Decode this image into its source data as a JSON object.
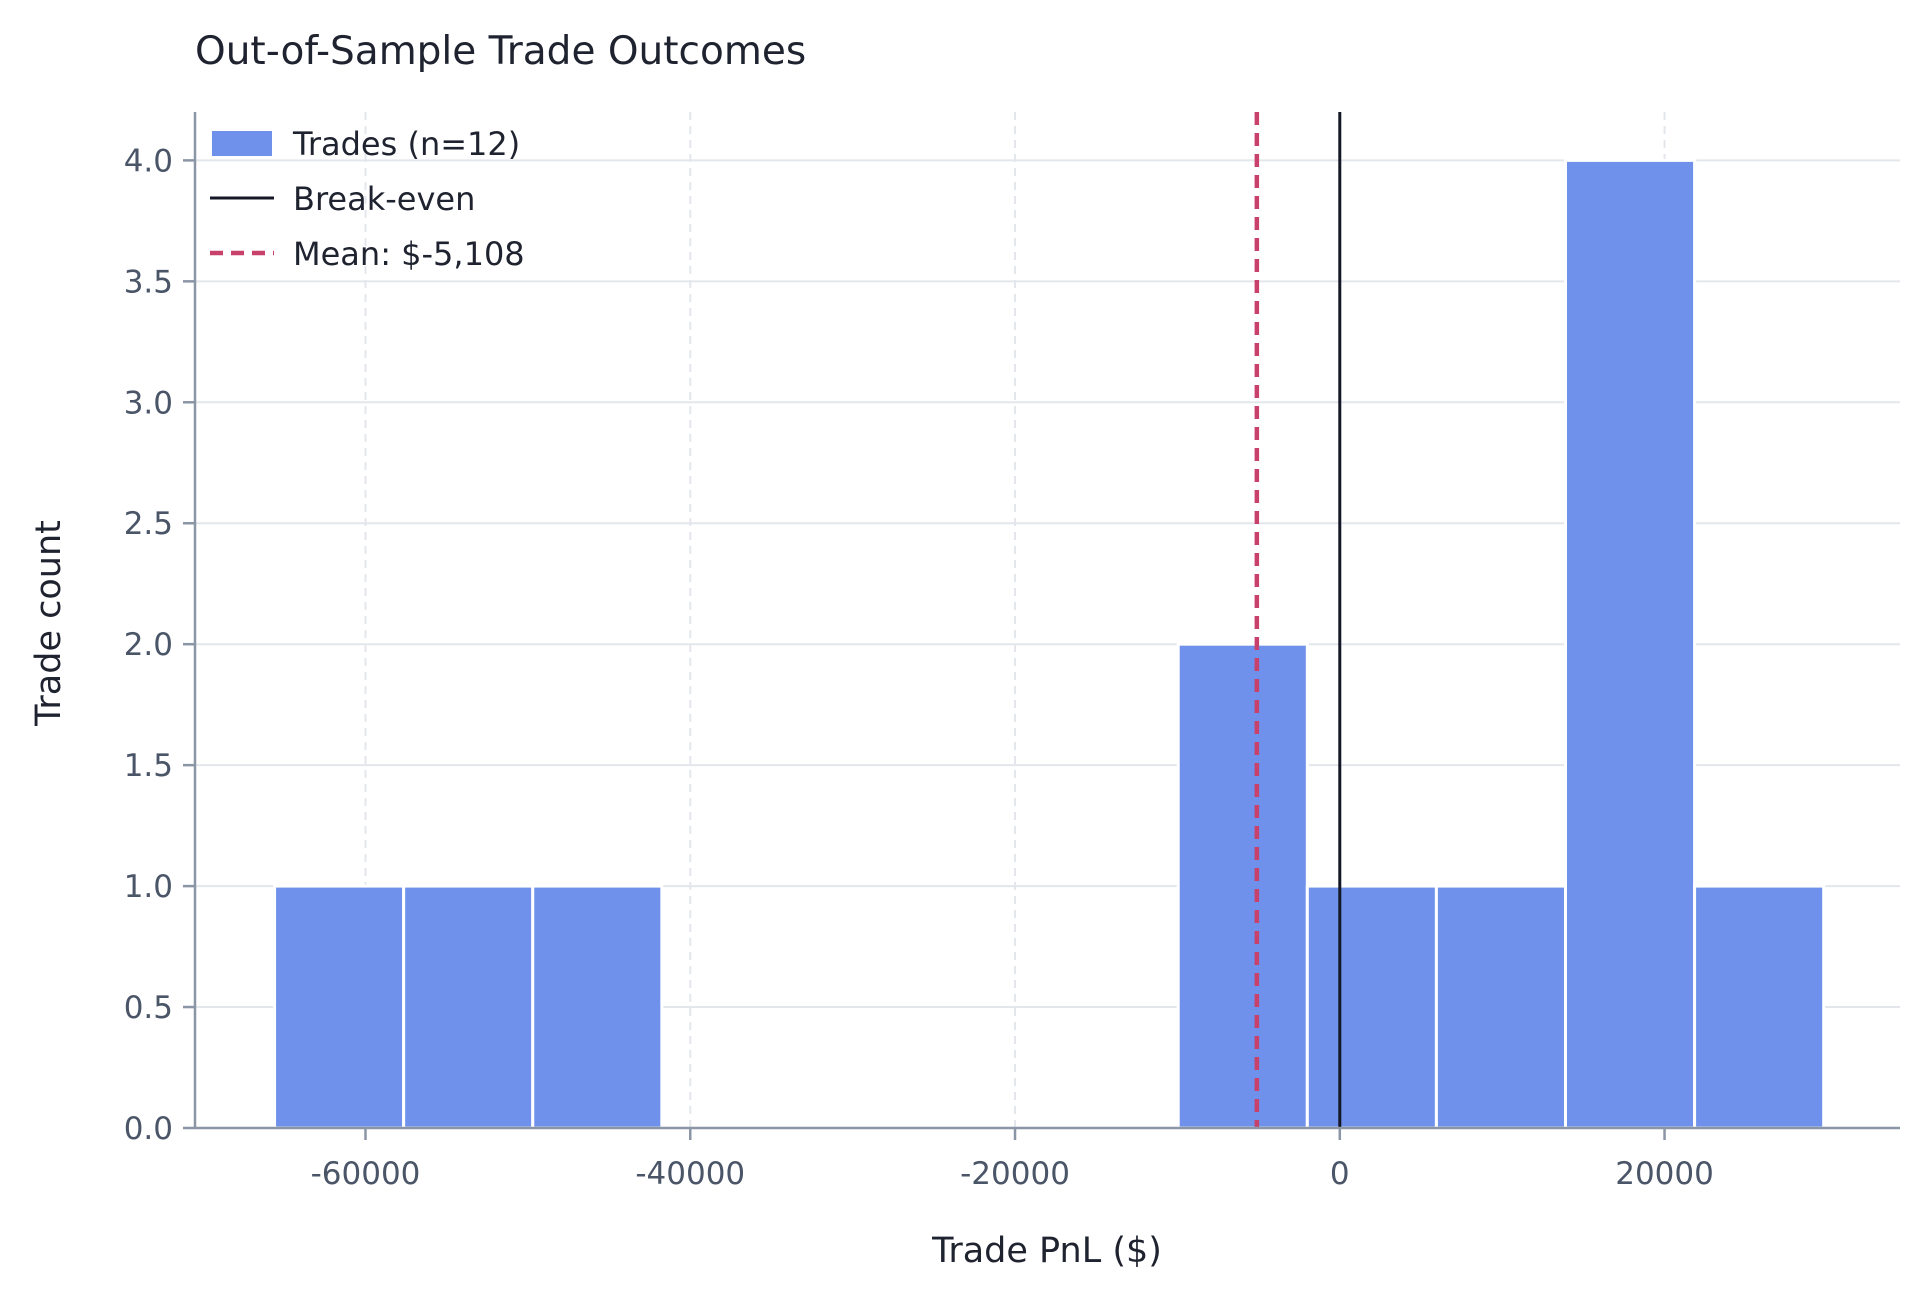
{
  "chart_data": {
    "type": "bar",
    "title": "Out-of-Sample Trade Outcomes",
    "xlabel": "Trade PnL ($)",
    "ylabel": "Trade count",
    "xlim": [
      -70500,
      34500
    ],
    "ylim": [
      0,
      4.2
    ],
    "xticks": [
      -60000,
      -40000,
      -20000,
      0,
      20000
    ],
    "xtick_labels": [
      "-60000",
      "-40000",
      "-20000",
      "0",
      "20000"
    ],
    "yticks": [
      0,
      0.5,
      1,
      1.5,
      2,
      2.5,
      3,
      3.5,
      4
    ],
    "ytick_labels": [
      "0.0",
      "0.5",
      "1.0",
      "1.5",
      "2.0",
      "2.5",
      "3.0",
      "3.5",
      "4.0"
    ],
    "grid": true,
    "legend_position": "top-left",
    "bins": [
      {
        "start": -65600,
        "end": -57650,
        "count": 1
      },
      {
        "start": -57650,
        "end": -49700,
        "count": 1
      },
      {
        "start": -49700,
        "end": -41750,
        "count": 1
      },
      {
        "start": -41750,
        "end": -33800,
        "count": 0
      },
      {
        "start": -33800,
        "end": -25850,
        "count": 0
      },
      {
        "start": -25850,
        "end": -17900,
        "count": 0
      },
      {
        "start": -17900,
        "end": -9950,
        "count": 0
      },
      {
        "start": -9950,
        "end": -2000,
        "count": 2
      },
      {
        "start": -2000,
        "end": 5950,
        "count": 1
      },
      {
        "start": 5950,
        "end": 13900,
        "count": 1
      },
      {
        "start": 13900,
        "end": 21850,
        "count": 4
      },
      {
        "start": 21850,
        "end": 29800,
        "count": 1
      }
    ],
    "series": [
      {
        "name": "Trades (n=12)",
        "kind": "histogram",
        "color": "#6f91eb"
      },
      {
        "name": "Break-even",
        "kind": "vline",
        "x": 0,
        "color": "#141826"
      },
      {
        "name": "Mean: $-5,108",
        "kind": "vline-dashed",
        "x": -5108,
        "color": "#c7416a"
      }
    ]
  }
}
